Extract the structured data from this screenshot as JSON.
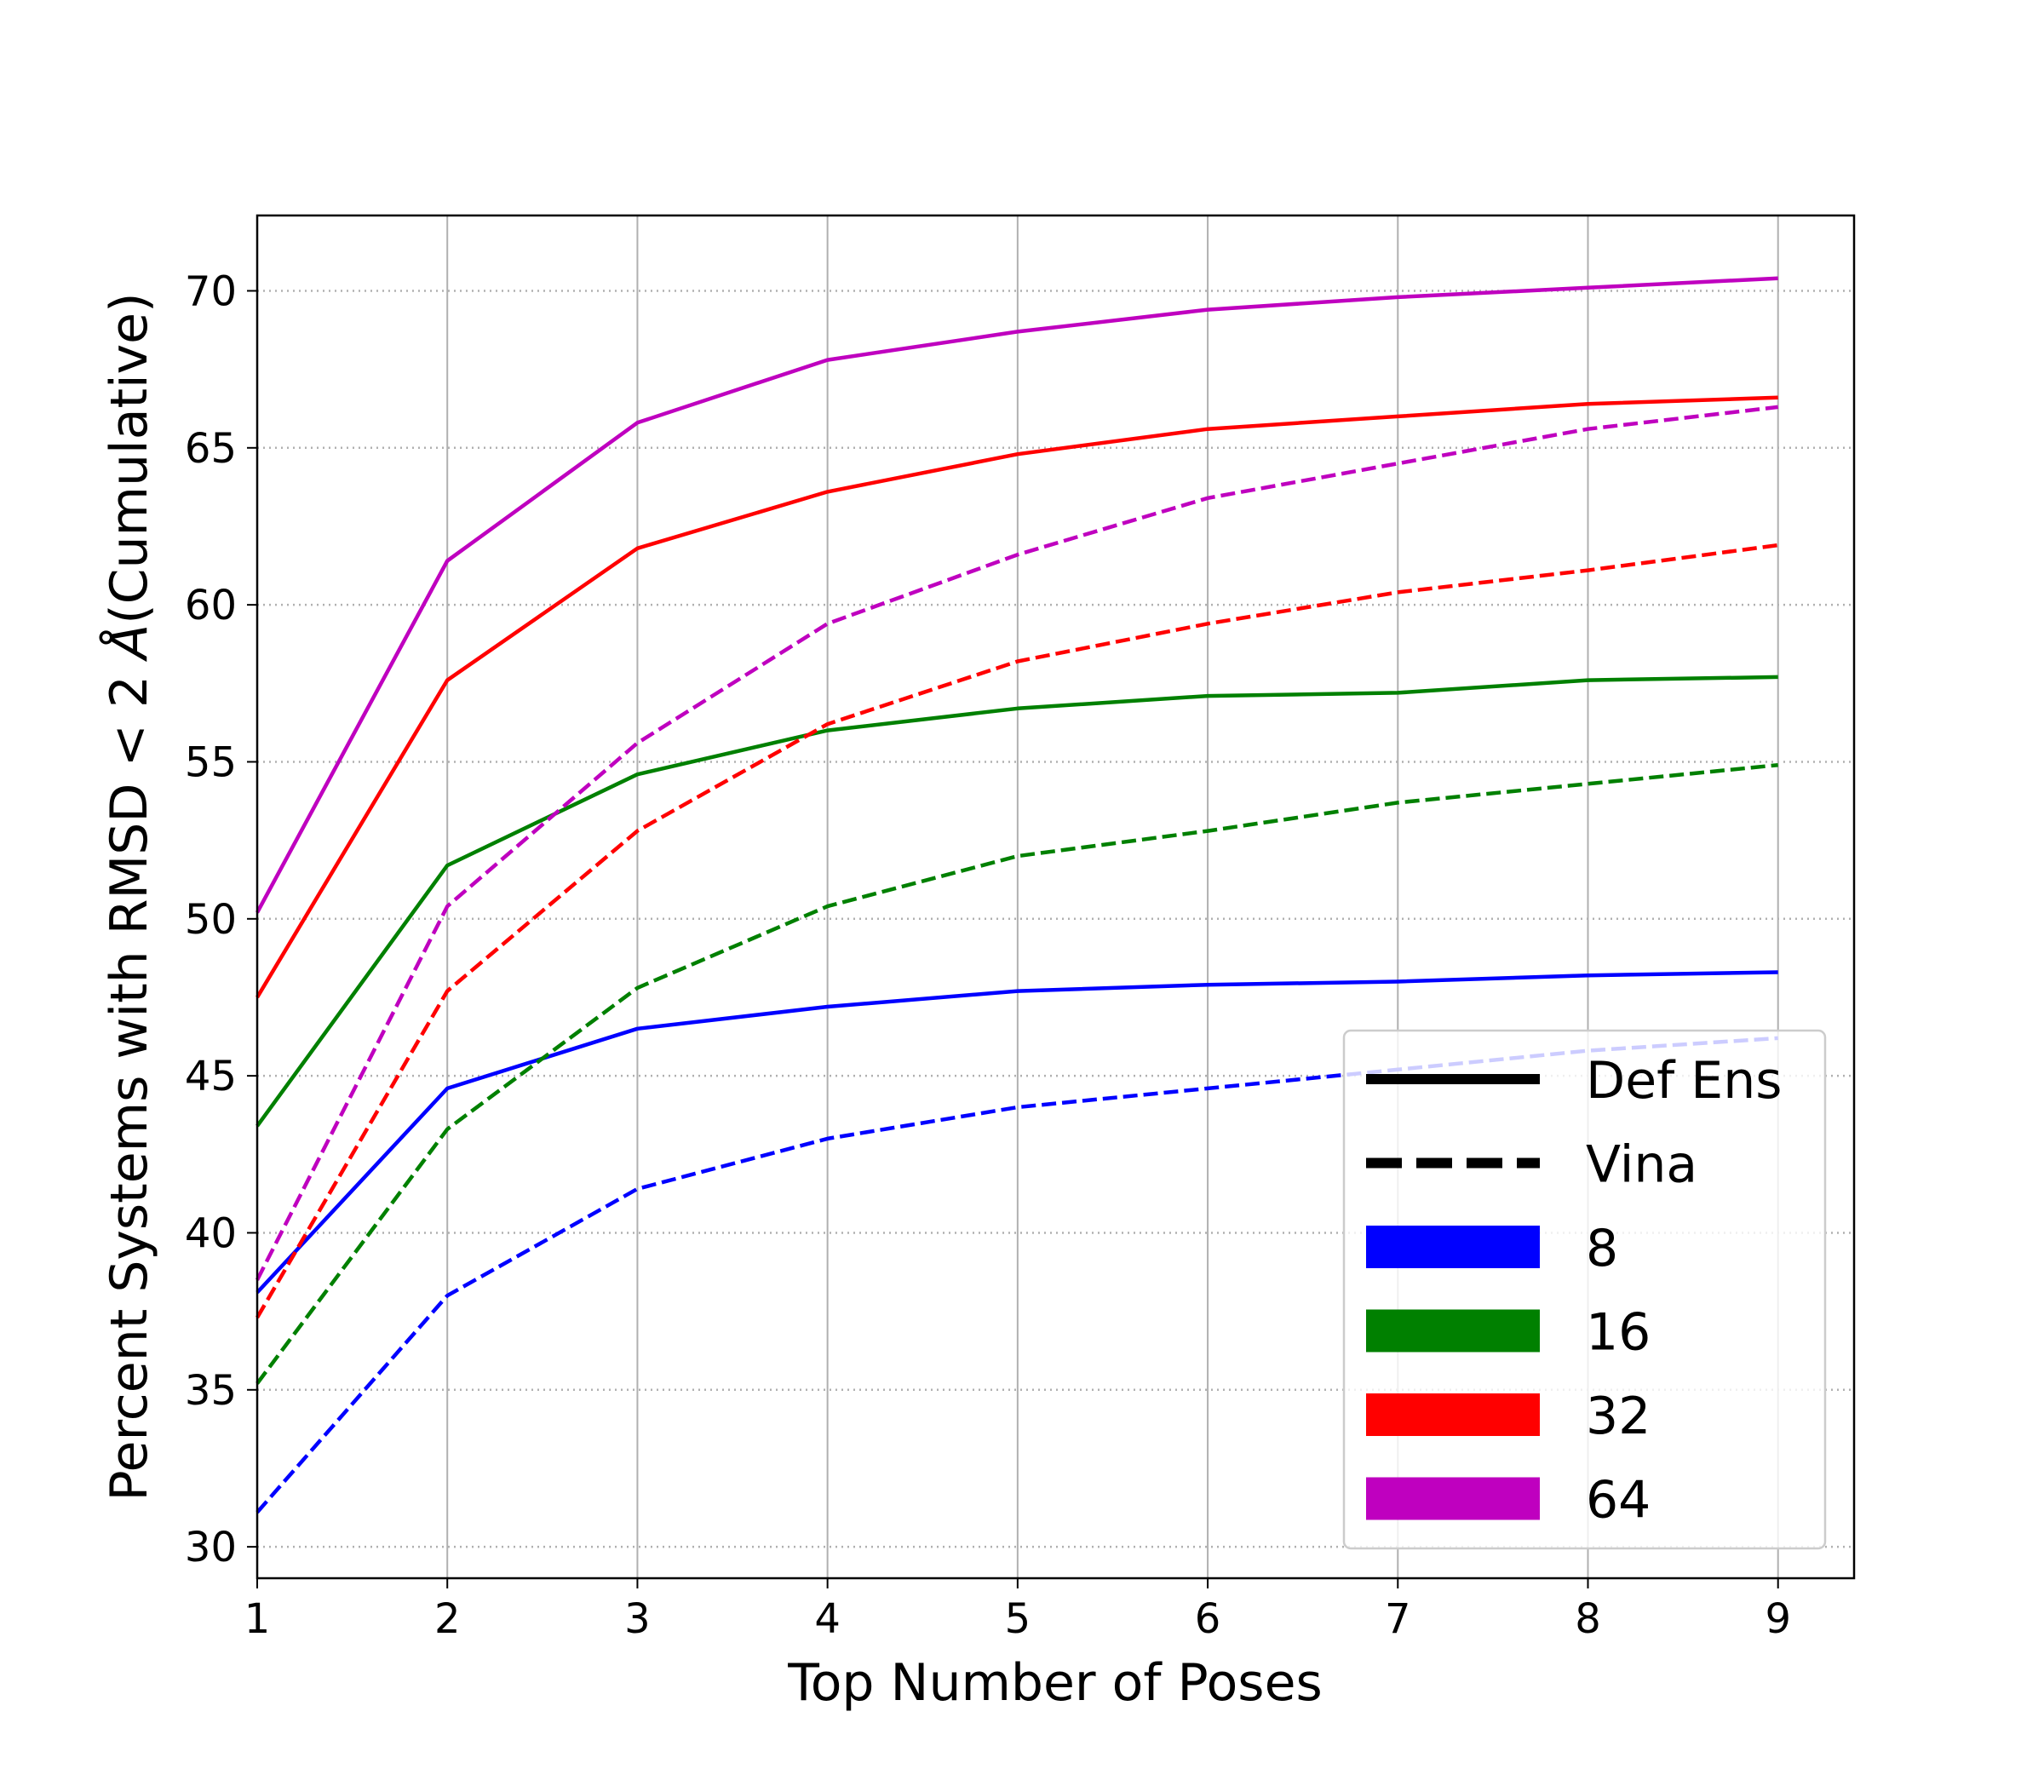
{
  "chart_data": {
    "type": "line",
    "title": "",
    "xlabel": "Top Number of Poses",
    "ylabel_prefix": "Percent Systems with RMSD < 2",
    "ylabel_unit": "Å",
    "ylabel_suffix": "(Cumulative)",
    "x": [
      1,
      2,
      3,
      4,
      5,
      6,
      7,
      8,
      9
    ],
    "xlim": [
      1,
      9.4
    ],
    "ylim": [
      29,
      72.4
    ],
    "x_ticks": [
      "1",
      "2",
      "3",
      "4",
      "5",
      "6",
      "7",
      "8",
      "9"
    ],
    "y_ticks": [
      "30",
      "35",
      "40",
      "45",
      "50",
      "55",
      "60",
      "65",
      "70"
    ],
    "x_grid": true,
    "y_grid": "dotted",
    "legend_position": "lower-right",
    "legend": {
      "styles": [
        {
          "label": "Def Ens",
          "dash": "solid"
        },
        {
          "label": "Vina",
          "dash": "dashed"
        }
      ],
      "sizes": [
        {
          "label": "8",
          "color": "#0000ff"
        },
        {
          "label": "16",
          "color": "#008000"
        },
        {
          "label": "32",
          "color": "#ff0000"
        },
        {
          "label": "64",
          "color": "#bf00bf"
        }
      ]
    },
    "series": [
      {
        "size": "8",
        "method": "Def Ens",
        "color": "#0000ff",
        "dash": "solid",
        "values": [
          38.1,
          44.6,
          46.5,
          47.2,
          47.7,
          47.9,
          48.0,
          48.2,
          48.3
        ]
      },
      {
        "size": "8",
        "method": "Vina",
        "color": "#0000ff",
        "dash": "dashed",
        "values": [
          31.1,
          38.0,
          41.4,
          43.0,
          44.0,
          44.6,
          45.2,
          45.8,
          46.2
        ]
      },
      {
        "size": "16",
        "method": "Def Ens",
        "color": "#008000",
        "dash": "solid",
        "values": [
          43.4,
          51.7,
          54.6,
          56.0,
          56.7,
          57.1,
          57.2,
          57.6,
          57.7
        ]
      },
      {
        "size": "16",
        "method": "Vina",
        "color": "#008000",
        "dash": "dashed",
        "values": [
          35.2,
          43.3,
          47.8,
          50.4,
          52.0,
          52.8,
          53.7,
          54.3,
          54.9
        ]
      },
      {
        "size": "32",
        "method": "Def Ens",
        "color": "#ff0000",
        "dash": "solid",
        "values": [
          47.5,
          57.6,
          61.8,
          63.6,
          64.8,
          65.6,
          66.0,
          66.4,
          66.6
        ]
      },
      {
        "size": "32",
        "method": "Vina",
        "color": "#ff0000",
        "dash": "dashed",
        "values": [
          37.3,
          47.7,
          52.8,
          56.2,
          58.2,
          59.4,
          60.4,
          61.1,
          61.9
        ]
      },
      {
        "size": "64",
        "method": "Def Ens",
        "color": "#bf00bf",
        "dash": "solid",
        "values": [
          50.2,
          61.4,
          65.8,
          67.8,
          68.7,
          69.4,
          69.8,
          70.1,
          70.4
        ]
      },
      {
        "size": "64",
        "method": "Vina",
        "color": "#bf00bf",
        "dash": "dashed",
        "values": [
          38.5,
          50.4,
          55.6,
          59.4,
          61.6,
          63.4,
          64.5,
          65.6,
          66.3
        ]
      }
    ]
  }
}
